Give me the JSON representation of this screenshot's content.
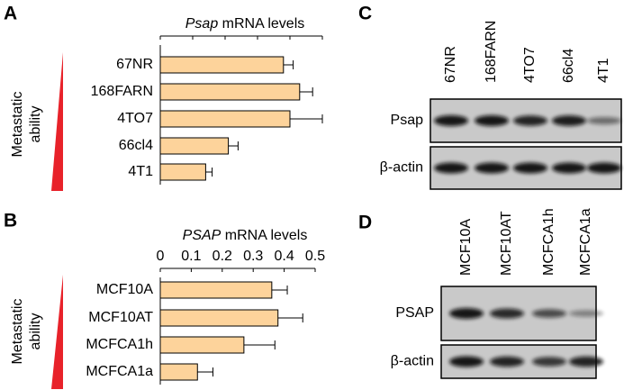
{
  "panel_a": {
    "letter": "A",
    "chart_data": {
      "type": "bar",
      "orientation": "horizontal",
      "title_gene": "Psap",
      "title_rest": "mRNA levels",
      "ylabel_lines": [
        "Metastatic",
        "ability"
      ],
      "categories": [
        "67NR",
        "168FARN",
        "4TO7",
        "66cl4",
        "4T1"
      ],
      "category_colors": [
        "#000000",
        "#1e7b1e",
        "#1e7b1e",
        "#e07b28",
        "#e8222a"
      ],
      "values": [
        0.38,
        0.43,
        0.4,
        0.21,
        0.14
      ],
      "errors": [
        0.03,
        0.04,
        0.1,
        0.03,
        0.02
      ],
      "color": "#fdd39b",
      "xlim": [
        0,
        0.5
      ],
      "xticks": [
        0,
        0.1,
        0.2,
        0.3,
        0.4,
        0.5
      ],
      "tick_labels": false
    }
  },
  "panel_b": {
    "letter": "B",
    "chart_data": {
      "type": "bar",
      "orientation": "horizontal",
      "title_gene": "PSAP",
      "title_rest": "mRNA levels",
      "ylabel_lines": [
        "Metastatic",
        "ability"
      ],
      "categories": [
        "MCF10A",
        "MCF10AT",
        "MCFCA1h",
        "MCFCA1a"
      ],
      "category_colors": [
        "#000000",
        "#000000",
        "#e07b28",
        "#e8222a"
      ],
      "values": [
        0.36,
        0.38,
        0.27,
        0.12
      ],
      "errors": [
        0.05,
        0.08,
        0.1,
        0.05
      ],
      "color": "#fdd39b",
      "xlim": [
        0,
        0.5
      ],
      "xticks": [
        0,
        0.1,
        0.2,
        0.3,
        0.4,
        0.5
      ],
      "tick_labels": true
    }
  },
  "panel_c": {
    "letter": "C",
    "lanes": [
      "67NR",
      "168FARN",
      "4TO7",
      "66cl4",
      "4T1"
    ],
    "lane_colors": [
      "#000000",
      "#1e7b1e",
      "#1e7b1e",
      "#e07b28",
      "#e8222a"
    ],
    "rows": [
      "Psap",
      "β-actin"
    ]
  },
  "panel_d": {
    "letter": "D",
    "lanes": [
      "MCF10A",
      "MCF10AT",
      "MCFCA1h",
      "MCFCA1a"
    ],
    "lane_colors": [
      "#000000",
      "#000000",
      "#e07b28",
      "#e8222a"
    ],
    "rows": [
      "PSAP",
      "β-actin"
    ]
  }
}
